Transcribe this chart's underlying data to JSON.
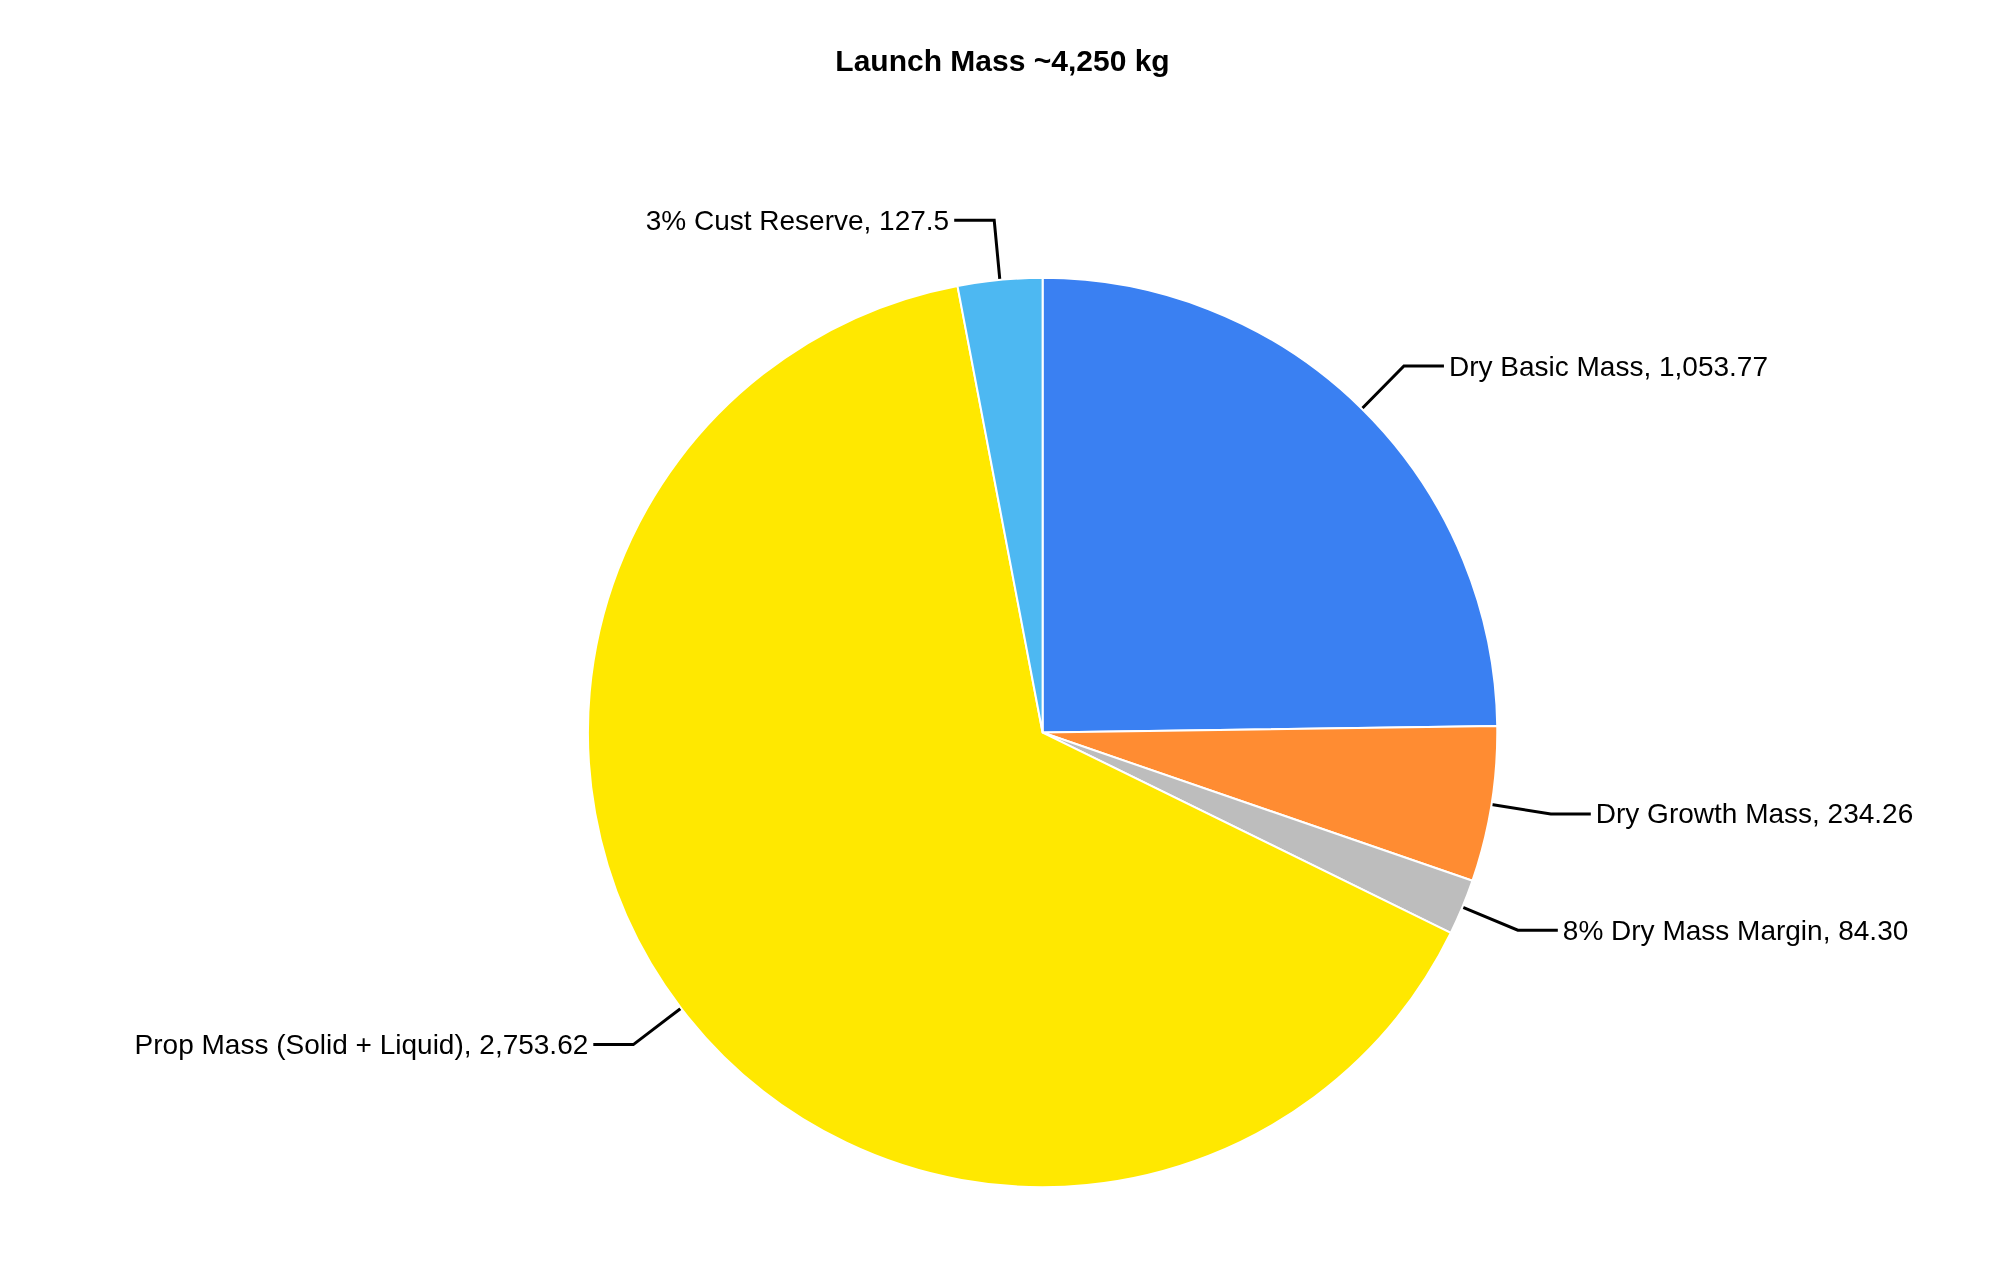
{
  "chart_data": {
    "type": "pie",
    "title": "Launch Mass ~4,250 kg",
    "categories": [
      "Dry Basic Mass",
      "Dry Growth Mass",
      "8% Dry Mass Margin",
      "Prop Mass (Solid + Liquid)",
      "3% Cust Reserve"
    ],
    "values": [
      1053.77,
      234.26,
      84.3,
      2753.62,
      127.5
    ],
    "value_labels": [
      "1,053.77",
      "234.26",
      "84.30",
      "2,753.62",
      "127.5"
    ],
    "colors": [
      "#3a80f2",
      "#ff8c32",
      "#bdbdbd",
      "#ffe800",
      "#4db8f2"
    ],
    "legend": false
  }
}
